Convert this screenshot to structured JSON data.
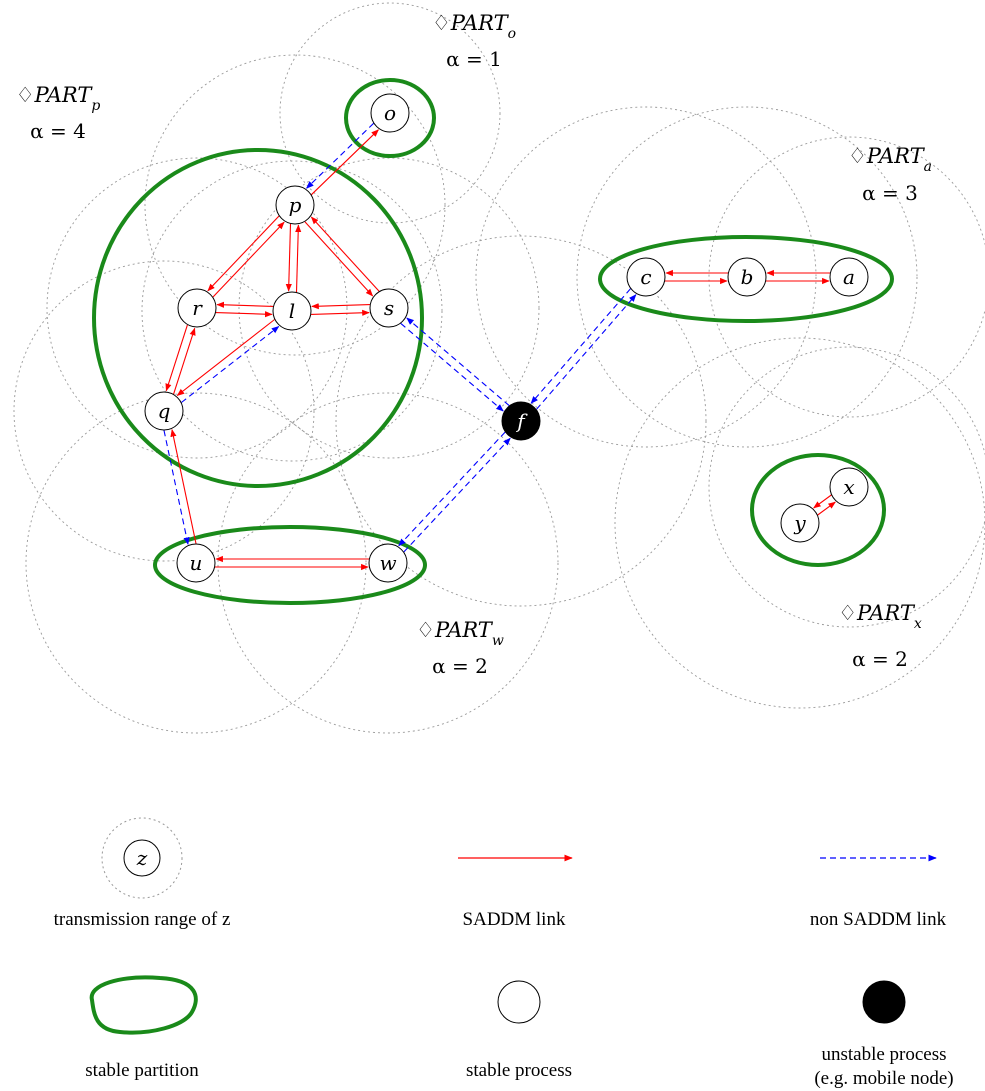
{
  "colors": {
    "sadddm_link": "#ff0000",
    "non_saddm_link": "#0000ff",
    "partition": "#1a8a1a",
    "range": "#999999",
    "unstable": "#000000"
  },
  "partitions": [
    {
      "id": "o",
      "name_prefix": "♢PART",
      "subscript": "o",
      "alpha": "α = 1"
    },
    {
      "id": "p",
      "name_prefix": "♢PART",
      "subscript": "p",
      "alpha": "α = 4"
    },
    {
      "id": "a",
      "name_prefix": "♢PART",
      "subscript": "a",
      "alpha": "α = 3"
    },
    {
      "id": "w",
      "name_prefix": "♢PART",
      "subscript": "w",
      "alpha": "α = 2"
    },
    {
      "id": "x",
      "name_prefix": "♢PART",
      "subscript": "x",
      "alpha": "α = 2"
    }
  ],
  "nodes": [
    {
      "id": "o",
      "label": "o",
      "stable": true
    },
    {
      "id": "p",
      "label": "p",
      "stable": true
    },
    {
      "id": "r",
      "label": "r",
      "stable": true
    },
    {
      "id": "l",
      "label": "l",
      "stable": true
    },
    {
      "id": "s",
      "label": "s",
      "stable": true
    },
    {
      "id": "q",
      "label": "q",
      "stable": true
    },
    {
      "id": "u",
      "label": "u",
      "stable": true
    },
    {
      "id": "w",
      "label": "w",
      "stable": true
    },
    {
      "id": "c",
      "label": "c",
      "stable": true
    },
    {
      "id": "b",
      "label": "b",
      "stable": true
    },
    {
      "id": "a",
      "label": "a",
      "stable": true
    },
    {
      "id": "x",
      "label": "x",
      "stable": true
    },
    {
      "id": "y",
      "label": "y",
      "stable": true
    },
    {
      "id": "f",
      "label": "f",
      "stable": false
    }
  ],
  "edges": [
    {
      "from": "p",
      "to": "o",
      "kind": "saddm"
    },
    {
      "from": "o",
      "to": "p",
      "kind": "non"
    },
    {
      "from": "p",
      "to": "r",
      "kind": "saddm"
    },
    {
      "from": "r",
      "to": "p",
      "kind": "saddm"
    },
    {
      "from": "p",
      "to": "l",
      "kind": "saddm"
    },
    {
      "from": "l",
      "to": "p",
      "kind": "saddm"
    },
    {
      "from": "p",
      "to": "s",
      "kind": "saddm"
    },
    {
      "from": "s",
      "to": "p",
      "kind": "saddm"
    },
    {
      "from": "r",
      "to": "l",
      "kind": "saddm"
    },
    {
      "from": "l",
      "to": "r",
      "kind": "saddm"
    },
    {
      "from": "l",
      "to": "s",
      "kind": "saddm"
    },
    {
      "from": "s",
      "to": "l",
      "kind": "saddm"
    },
    {
      "from": "r",
      "to": "q",
      "kind": "saddm"
    },
    {
      "from": "q",
      "to": "r",
      "kind": "saddm"
    },
    {
      "from": "l",
      "to": "q",
      "kind": "saddm"
    },
    {
      "from": "q",
      "to": "l",
      "kind": "non"
    },
    {
      "from": "q",
      "to": "u",
      "kind": "non"
    },
    {
      "from": "u",
      "to": "q",
      "kind": "saddm"
    },
    {
      "from": "u",
      "to": "w",
      "kind": "saddm"
    },
    {
      "from": "w",
      "to": "u",
      "kind": "saddm"
    },
    {
      "from": "s",
      "to": "f",
      "kind": "non"
    },
    {
      "from": "f",
      "to": "s",
      "kind": "non"
    },
    {
      "from": "w",
      "to": "f",
      "kind": "non"
    },
    {
      "from": "f",
      "to": "w",
      "kind": "non"
    },
    {
      "from": "c",
      "to": "f",
      "kind": "non"
    },
    {
      "from": "f",
      "to": "c",
      "kind": "non"
    },
    {
      "from": "c",
      "to": "b",
      "kind": "saddm"
    },
    {
      "from": "b",
      "to": "c",
      "kind": "saddm"
    },
    {
      "from": "b",
      "to": "a",
      "kind": "saddm"
    },
    {
      "from": "a",
      "to": "b",
      "kind": "saddm"
    },
    {
      "from": "y",
      "to": "x",
      "kind": "saddm"
    },
    {
      "from": "x",
      "to": "y",
      "kind": "saddm"
    }
  ],
  "legend": {
    "range_node_label": "z",
    "range_text": "transmission range of z",
    "saddm_text": "SADDM link",
    "non_saddm_text": "non SADDM link",
    "partition_text": "stable partition",
    "stable_text": "stable process",
    "unstable_text_1": "unstable process",
    "unstable_text_2": "(e.g. mobile node)"
  }
}
